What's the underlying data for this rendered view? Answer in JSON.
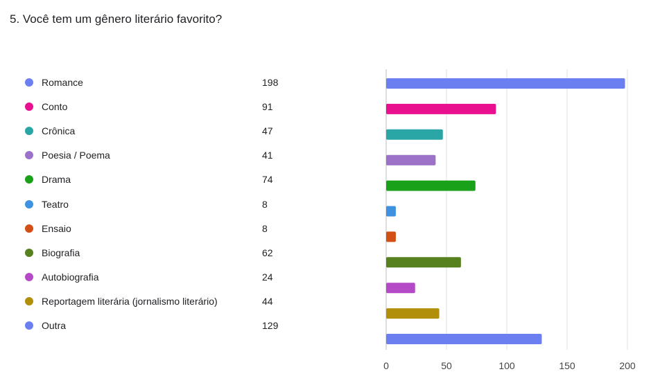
{
  "question": {
    "title": "5. Você tem um gênero literário favorito?"
  },
  "chart_data": {
    "type": "bar",
    "orientation": "horizontal",
    "title": "5. Você tem um gênero literário favorito?",
    "categories": [
      "Romance",
      "Conto",
      "Crônica",
      "Poesia / Poema",
      "Drama",
      "Teatro",
      "Ensaio",
      "Biografia",
      "Autobiografia",
      "Reportagem literária (jornalismo literário)",
      "Outra"
    ],
    "values": [
      198,
      91,
      47,
      41,
      74,
      8,
      8,
      62,
      24,
      44,
      129
    ],
    "colors": [
      "#6c7ff0",
      "#e8108f",
      "#2ba6a6",
      "#9b72c8",
      "#1aa11a",
      "#3e92e0",
      "#d24f16",
      "#57801f",
      "#b54ac6",
      "#b28f0a",
      "#6c7ff0"
    ],
    "xlim": [
      0,
      200
    ],
    "xticks": [
      0,
      50,
      100,
      150,
      200
    ],
    "xlabel": "",
    "ylabel": "",
    "grid": true,
    "legend": "left"
  }
}
